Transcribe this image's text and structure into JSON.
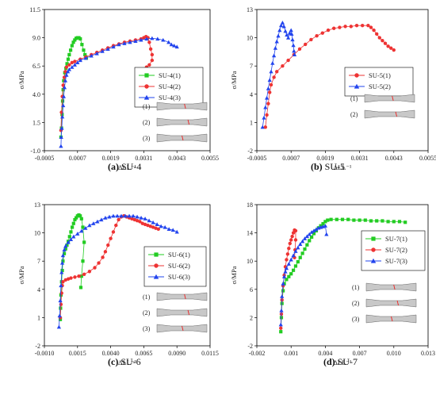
{
  "chart_data": [
    {
      "type": "scatter",
      "caption_letter": "(a)",
      "caption_text": " SU-4",
      "xlabel": "ΔLL⁻¹",
      "ylabel": "σ/MPa",
      "xlim": [
        -0.0005,
        0.0055
      ],
      "ylim": [
        -1.0,
        11.5
      ],
      "xticks": [
        "-0.0005",
        "0.0007",
        "0.0019",
        "0.0031",
        "0.0043",
        "0.0055"
      ],
      "yticks": [
        "-1.0",
        "1.5",
        "4.0",
        "6.5",
        "9.0",
        "11.5"
      ],
      "legend": [
        "SU-4(1)",
        "SU-4(2)",
        "SU-4(3)"
      ],
      "specimens": [
        "(1)",
        "(2)",
        "(3)"
      ],
      "series": [
        {
          "name": "SU-4(1)",
          "color": "#22cc22",
          "marker": "square",
          "x": [
            0.0001,
            0.00012,
            0.00014,
            0.00016,
            0.00018,
            0.0002,
            0.00024,
            0.00028,
            0.00032,
            0.00036,
            0.0004,
            0.00045,
            0.0005,
            0.00055,
            0.0006,
            0.00065,
            0.0007,
            0.00075,
            0.0008,
            0.00086,
            0.00092,
            0.00097,
            0.001,
            0.00102
          ],
          "y": [
            0.2,
            1.0,
            2.2,
            3.4,
            4.4,
            5.2,
            5.9,
            6.3,
            6.7,
            7.1,
            7.5,
            7.9,
            8.3,
            8.6,
            8.8,
            8.95,
            9.0,
            9.0,
            8.9,
            8.4,
            7.9,
            7.5,
            7.3,
            7.2
          ]
        },
        {
          "name": "SU-4(2)",
          "color": "#ee3333",
          "marker": "circle",
          "x": [
            0.0001,
            0.00012,
            0.00015,
            0.00018,
            0.00022,
            0.00026,
            0.0003,
            0.0004,
            0.0005,
            0.0006,
            0.0008,
            0.001,
            0.0012,
            0.0014,
            0.0016,
            0.0018,
            0.002,
            0.0022,
            0.0024,
            0.0026,
            0.0028,
            0.003,
            0.0031,
            0.00318,
            0.00325,
            0.0033,
            0.00335,
            0.0034,
            0.0034,
            0.0033,
            0.0032
          ],
          "y": [
            0.8,
            2.4,
            3.8,
            4.8,
            5.5,
            6.0,
            6.4,
            6.6,
            6.8,
            6.9,
            7.1,
            7.3,
            7.5,
            7.7,
            7.9,
            8.1,
            8.3,
            8.45,
            8.6,
            8.7,
            8.8,
            8.9,
            9.0,
            9.1,
            9.0,
            8.6,
            8.0,
            7.5,
            7.0,
            6.6,
            6.4
          ]
        },
        {
          "name": "SU-4(3)",
          "color": "#2244ee",
          "marker": "triangle",
          "x": [
            0.0001,
            0.00011,
            0.00013,
            0.00015,
            0.00018,
            0.0002,
            0.00023,
            0.00026,
            0.0003,
            0.00035,
            0.0004,
            0.0005,
            0.0006,
            0.0007,
            0.0008,
            0.001,
            0.0012,
            0.0014,
            0.0016,
            0.0018,
            0.002,
            0.0022,
            0.0024,
            0.0026,
            0.0028,
            0.003,
            0.0032,
            0.0034,
            0.0036,
            0.0038,
            0.004,
            0.0041,
            0.0042,
            0.0043
          ],
          "y": [
            -0.6,
            0.2,
            1.0,
            2.0,
            3.0,
            3.8,
            4.6,
            5.2,
            5.7,
            6.0,
            6.2,
            6.4,
            6.6,
            6.8,
            7.0,
            7.2,
            7.4,
            7.6,
            7.8,
            8.0,
            8.2,
            8.4,
            8.5,
            8.6,
            8.7,
            8.8,
            8.9,
            8.95,
            8.9,
            8.8,
            8.6,
            8.4,
            8.3,
            8.2
          ]
        }
      ]
    },
    {
      "type": "scatter",
      "caption_letter": "(b)",
      "caption_text": " SU-5",
      "xlabel": "ΔLL⁻¹",
      "ylabel": "σ/MPa",
      "xlim": [
        -0.0005,
        0.0055
      ],
      "ylim": [
        -2,
        13
      ],
      "xticks": [
        "-0.0005",
        "0.0007",
        "0.0019",
        "0.0031",
        "0.0043",
        "0.0055"
      ],
      "yticks": [
        "-2",
        "1",
        "4",
        "7",
        "10",
        "13"
      ],
      "legend": [
        "SU-5(1)",
        "SU-5(2)"
      ],
      "specimens": [
        "(1)",
        "(2)"
      ],
      "series": [
        {
          "name": "SU-5(1)",
          "color": "#ee3333",
          "marker": "circle",
          "x": [
            -0.0002,
            -0.00015,
            -0.0001,
            -5e-05,
            0.0,
            0.0001,
            0.0002,
            0.0004,
            0.0006,
            0.0008,
            0.001,
            0.0012,
            0.0014,
            0.0016,
            0.0018,
            0.002,
            0.0022,
            0.0024,
            0.0026,
            0.0028,
            0.003,
            0.0032,
            0.0034,
            0.0035,
            0.0036,
            0.0037,
            0.0038,
            0.0039,
            0.004,
            0.0041,
            0.0042,
            0.0043
          ],
          "y": [
            0.5,
            1.8,
            3.0,
            4.2,
            5.0,
            5.8,
            6.4,
            7.0,
            7.6,
            8.2,
            8.8,
            9.3,
            9.8,
            10.2,
            10.5,
            10.8,
            11.0,
            11.1,
            11.2,
            11.2,
            11.3,
            11.3,
            11.3,
            11.1,
            10.8,
            10.4,
            10.0,
            9.7,
            9.4,
            9.1,
            8.9,
            8.7
          ]
        },
        {
          "name": "SU-5(2)",
          "color": "#2244ee",
          "marker": "triangle",
          "x": [
            -0.0003,
            -0.00025,
            -0.0002,
            -0.00015,
            -0.0001,
            -5e-05,
            0.0,
            5e-05,
            0.0001,
            0.00015,
            0.0002,
            0.00025,
            0.0003,
            0.00035,
            0.0004,
            0.00045,
            0.0005,
            0.00055,
            0.0006,
            0.00065,
            0.0007,
            0.00072,
            0.00075,
            0.00078,
            0.0008,
            0.00082
          ],
          "y": [
            0.5,
            1.5,
            2.6,
            3.6,
            4.6,
            5.5,
            6.4,
            7.3,
            8.1,
            8.9,
            9.6,
            10.2,
            10.8,
            11.3,
            11.6,
            11.2,
            10.7,
            10.3,
            10.0,
            10.5,
            10.8,
            10.4,
            9.8,
            9.2,
            8.6,
            8.2
          ]
        }
      ]
    },
    {
      "type": "scatter",
      "caption_letter": "(c)",
      "caption_text": " SU-6",
      "xlabel": "ΔLL⁻¹",
      "ylabel": "σ/MPa",
      "xlim": [
        -0.001,
        0.0115
      ],
      "ylim": [
        -2,
        13
      ],
      "xticks": [
        "-0.0010",
        "0.0015",
        "0.0040",
        "0.0065",
        "0.0090",
        "0.0115"
      ],
      "yticks": [
        "-2",
        "1",
        "4",
        "7",
        "10",
        "13"
      ],
      "legend": [
        "SU-6(1)",
        "SU-6(2)",
        "SU-6(3)"
      ],
      "specimens": [
        "(1)",
        "(2)",
        "(3)"
      ],
      "series": [
        {
          "name": "SU-6(1)",
          "color": "#22cc22",
          "marker": "square",
          "x": [
            0.0002,
            0.00022,
            0.00025,
            0.0003,
            0.00035,
            0.0004,
            0.0005,
            0.0006,
            0.0007,
            0.0008,
            0.0009,
            0.001,
            0.0011,
            0.0012,
            0.0013,
            0.0014,
            0.0015,
            0.0016,
            0.0017,
            0.0018,
            0.0019,
            0.002,
            0.0019,
            0.0018,
            0.00175
          ],
          "y": [
            0.8,
            2.0,
            3.4,
            4.8,
            6.0,
            7.0,
            7.8,
            8.3,
            8.7,
            9.1,
            9.6,
            10.1,
            10.6,
            11.0,
            11.4,
            11.6,
            11.8,
            11.9,
            11.8,
            11.5,
            10.6,
            9.0,
            7.0,
            5.4,
            4.2
          ]
        },
        {
          "name": "SU-6(2)",
          "color": "#ee3333",
          "marker": "circle",
          "x": [
            0.0002,
            0.00025,
            0.0003,
            0.00035,
            0.0004,
            0.0006,
            0.0008,
            0.001,
            0.0013,
            0.0016,
            0.002,
            0.0024,
            0.0028,
            0.0031,
            0.0034,
            0.0036,
            0.0038,
            0.004,
            0.0042,
            0.0044,
            0.0046,
            0.0048,
            0.005,
            0.0052,
            0.0054,
            0.0056,
            0.0058,
            0.006,
            0.0062,
            0.0064,
            0.0066,
            0.0068,
            0.007,
            0.0072,
            0.0074,
            0.0076
          ],
          "y": [
            1.0,
            2.4,
            3.6,
            4.4,
            4.8,
            5.0,
            5.1,
            5.2,
            5.3,
            5.4,
            5.6,
            5.9,
            6.3,
            6.8,
            7.4,
            8.0,
            8.7,
            9.4,
            10.1,
            10.8,
            11.4,
            11.7,
            11.8,
            11.7,
            11.6,
            11.5,
            11.4,
            11.3,
            11.2,
            11.0,
            10.9,
            10.8,
            10.7,
            10.6,
            10.5,
            10.4
          ]
        },
        {
          "name": "SU-6(3)",
          "color": "#2244ee",
          "marker": "triangle",
          "x": [
            0.0001,
            0.00015,
            0.0002,
            0.00025,
            0.0003,
            0.00035,
            0.0004,
            0.0005,
            0.0006,
            0.0008,
            0.001,
            0.0012,
            0.0015,
            0.0018,
            0.0021,
            0.0024,
            0.0027,
            0.003,
            0.0033,
            0.0036,
            0.0039,
            0.0042,
            0.0045,
            0.0048,
            0.0051,
            0.0054,
            0.0057,
            0.006,
            0.0063,
            0.0066,
            0.0069,
            0.0072,
            0.0075,
            0.0078,
            0.0081,
            0.0084,
            0.0087,
            0.009
          ],
          "y": [
            0.0,
            1.2,
            2.8,
            4.4,
            5.8,
            6.8,
            7.6,
            8.2,
            8.6,
            9.0,
            9.3,
            9.6,
            9.9,
            10.2,
            10.5,
            10.8,
            11.0,
            11.2,
            11.4,
            11.6,
            11.7,
            11.8,
            11.8,
            11.8,
            11.8,
            11.8,
            11.8,
            11.7,
            11.6,
            11.5,
            11.3,
            11.1,
            10.9,
            10.7,
            10.6,
            10.4,
            10.3,
            10.1
          ]
        }
      ]
    },
    {
      "type": "scatter",
      "caption_letter": "(d)",
      "caption_text": " SU-7",
      "xlabel": "ΔLL⁻¹",
      "ylabel": "σ/MPa",
      "xlim": [
        -0.002,
        0.013
      ],
      "ylim": [
        -2,
        18
      ],
      "xticks": [
        "-0.002",
        "0.001",
        "0.004",
        "0.007",
        "0.010",
        "0.013"
      ],
      "yticks": [
        "-2",
        "2",
        "6",
        "10",
        "14",
        "18"
      ],
      "legend": [
        "SU-7(1)",
        "SU-7(2)",
        "SU-7(3)"
      ],
      "specimens": [
        "(1)",
        "(2)",
        "(3)"
      ],
      "series": [
        {
          "name": "SU-7(1)",
          "color": "#22cc22",
          "marker": "square",
          "x": [
            0.0001,
            0.00015,
            0.0002,
            0.0003,
            0.0004,
            0.0006,
            0.0008,
            0.001,
            0.0012,
            0.0014,
            0.0016,
            0.0018,
            0.002,
            0.0022,
            0.0024,
            0.0026,
            0.0028,
            0.003,
            0.0032,
            0.0034,
            0.0036,
            0.0038,
            0.004,
            0.0042,
            0.0045,
            0.005,
            0.0055,
            0.006,
            0.0065,
            0.007,
            0.0075,
            0.008,
            0.0085,
            0.009,
            0.0095,
            0.01,
            0.0105,
            0.011
          ],
          "y": [
            0.0,
            2.0,
            4.0,
            5.8,
            6.8,
            7.4,
            7.8,
            8.2,
            8.7,
            9.3,
            9.9,
            10.5,
            11.1,
            11.7,
            12.3,
            12.9,
            13.4,
            13.9,
            14.3,
            14.7,
            15.0,
            15.3,
            15.6,
            15.8,
            15.9,
            15.9,
            15.9,
            15.9,
            15.8,
            15.8,
            15.8,
            15.7,
            15.7,
            15.7,
            15.6,
            15.6,
            15.6,
            15.5
          ]
        },
        {
          "name": "SU-7(2)",
          "color": "#ee3333",
          "marker": "circle",
          "x": [
            0.0001,
            0.00015,
            0.0002,
            0.0003,
            0.0004,
            0.0005,
            0.0006,
            0.0007,
            0.0008,
            0.0009,
            0.001,
            0.0011,
            0.0012,
            0.0013,
            0.0014,
            0.0014,
            0.00135,
            0.0013
          ],
          "y": [
            0.5,
            2.5,
            4.5,
            6.5,
            8.0,
            9.2,
            10.2,
            11.0,
            11.8,
            12.5,
            13.0,
            13.5,
            14.0,
            14.4,
            14.3,
            13.0,
            11.6,
            10.5
          ]
        },
        {
          "name": "SU-7(3)",
          "color": "#2244ee",
          "marker": "triangle",
          "x": [
            0.0001,
            0.00015,
            0.0002,
            0.0003,
            0.0004,
            0.0005,
            0.0006,
            0.0008,
            0.001,
            0.0012,
            0.0014,
            0.0016,
            0.0018,
            0.002,
            0.0022,
            0.0024,
            0.0026,
            0.0028,
            0.003,
            0.0032,
            0.0034,
            0.0036,
            0.0038,
            0.004,
            0.0041
          ],
          "y": [
            1.0,
            3.0,
            5.0,
            6.8,
            7.8,
            8.5,
            9.0,
            9.6,
            10.2,
            10.8,
            11.4,
            11.9,
            12.4,
            12.8,
            13.2,
            13.5,
            13.8,
            14.1,
            14.3,
            14.5,
            14.7,
            14.8,
            14.9,
            15.0,
            13.8
          ]
        }
      ]
    }
  ]
}
